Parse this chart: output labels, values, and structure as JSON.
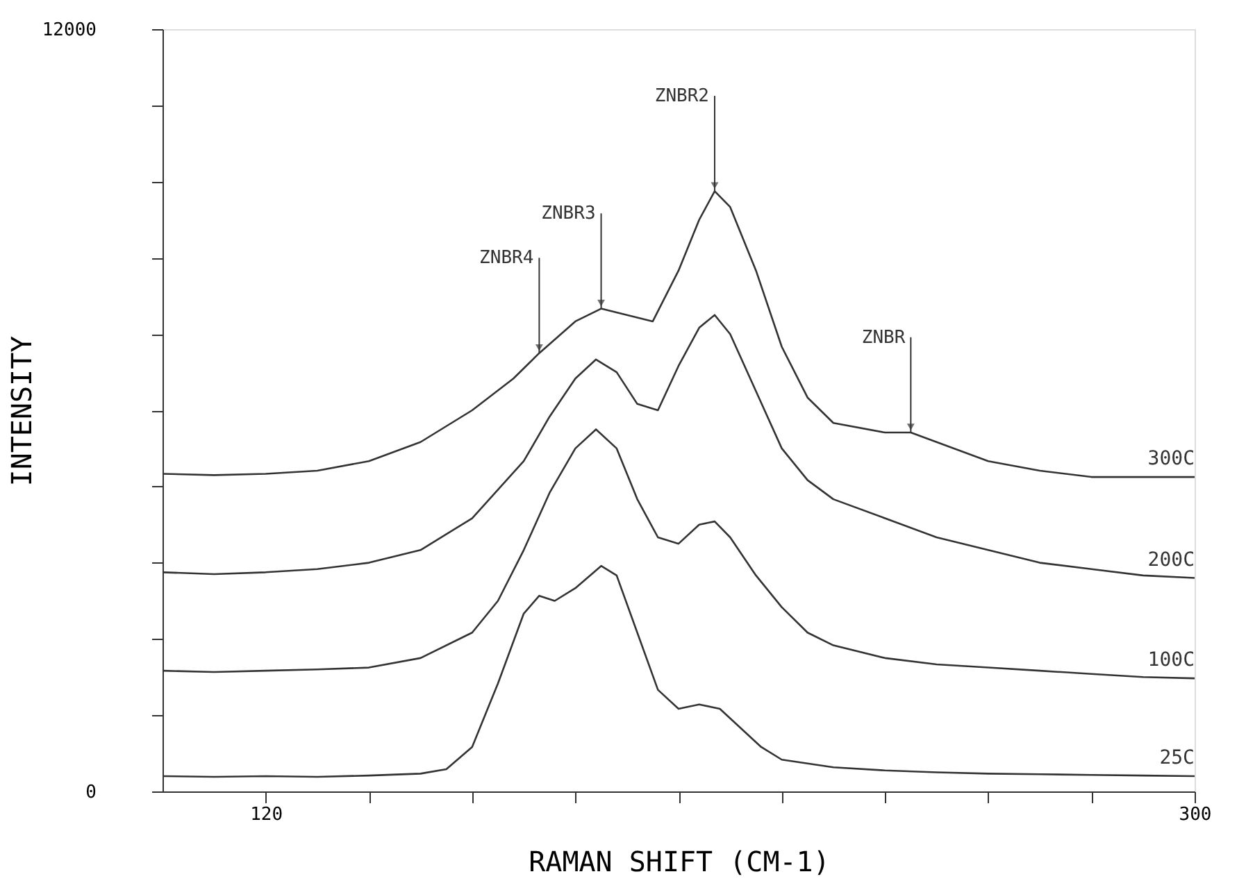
{
  "chart_data": {
    "type": "line",
    "xlabel": "RAMAN SHIFT (CM-1)",
    "ylabel": "INTENSITY",
    "xlim": [
      100,
      300
    ],
    "ylim": [
      0,
      12000
    ],
    "xticks": [
      {
        "value": 120,
        "label": "120"
      },
      {
        "value": 140,
        "label": null
      },
      {
        "value": 160,
        "label": null
      },
      {
        "value": 180,
        "label": null
      },
      {
        "value": 200,
        "label": null
      },
      {
        "value": 220,
        "label": null
      },
      {
        "value": 240,
        "label": null
      },
      {
        "value": 260,
        "label": null
      },
      {
        "value": 280,
        "label": null
      },
      {
        "value": 300,
        "label": "300"
      }
    ],
    "yticks": [
      {
        "value": 0,
        "label": "0"
      },
      {
        "value": 1200,
        "label": null
      },
      {
        "value": 2400,
        "label": null
      },
      {
        "value": 3600,
        "label": null
      },
      {
        "value": 4800,
        "label": null
      },
      {
        "value": 6000,
        "label": null
      },
      {
        "value": 7200,
        "label": null
      },
      {
        "value": 8400,
        "label": null
      },
      {
        "value": 9600,
        "label": null
      },
      {
        "value": 10800,
        "label": null
      },
      {
        "value": 12000,
        "label": "12000"
      }
    ],
    "grid": false,
    "series": [
      {
        "name": "300C",
        "color": "#333333",
        "x": [
          100,
          110,
          120,
          130,
          140,
          150,
          160,
          168,
          173,
          180,
          185,
          190,
          195,
          200,
          204,
          207,
          210,
          215,
          220,
          225,
          230,
          240,
          245,
          250,
          260,
          270,
          280,
          290,
          300
        ],
        "values": [
          5000,
          4980,
          5000,
          5050,
          5200,
          5500,
          6000,
          6500,
          6900,
          7400,
          7600,
          7500,
          7400,
          8200,
          9000,
          9450,
          9200,
          8200,
          7000,
          6200,
          5800,
          5650,
          5650,
          5500,
          5200,
          5050,
          4950,
          4950,
          4950
        ]
      },
      {
        "name": "200C",
        "color": "#333333",
        "x": [
          100,
          110,
          120,
          130,
          140,
          150,
          160,
          170,
          175,
          180,
          184,
          188,
          192,
          196,
          200,
          204,
          207,
          210,
          215,
          220,
          225,
          230,
          240,
          250,
          260,
          270,
          280,
          290,
          300
        ],
        "values": [
          3450,
          3420,
          3450,
          3500,
          3600,
          3800,
          4300,
          5200,
          5900,
          6500,
          6800,
          6600,
          6100,
          6000,
          6700,
          7300,
          7500,
          7200,
          6300,
          5400,
          4900,
          4600,
          4300,
          4000,
          3800,
          3600,
          3500,
          3400,
          3360
        ]
      },
      {
        "name": "100C",
        "color": "#333333",
        "x": [
          100,
          110,
          120,
          130,
          140,
          150,
          160,
          165,
          170,
          175,
          180,
          184,
          188,
          192,
          196,
          200,
          204,
          207,
          210,
          215,
          220,
          225,
          230,
          240,
          250,
          260,
          270,
          280,
          290,
          300
        ],
        "values": [
          1900,
          1880,
          1900,
          1920,
          1950,
          2100,
          2500,
          3000,
          3800,
          4700,
          5400,
          5700,
          5400,
          4600,
          4000,
          3900,
          4200,
          4250,
          4000,
          3400,
          2900,
          2500,
          2300,
          2100,
          2000,
          1950,
          1900,
          1850,
          1800,
          1780
        ]
      },
      {
        "name": "25C",
        "color": "#333333",
        "x": [
          100,
          110,
          120,
          130,
          140,
          150,
          155,
          160,
          165,
          170,
          173,
          176,
          180,
          185,
          188,
          192,
          196,
          200,
          204,
          208,
          212,
          216,
          220,
          230,
          240,
          250,
          260,
          270,
          280,
          290,
          300
        ],
        "values": [
          240,
          230,
          240,
          230,
          250,
          280,
          350,
          700,
          1700,
          2800,
          3080,
          3000,
          3200,
          3550,
          3400,
          2500,
          1600,
          1300,
          1370,
          1300,
          1000,
          700,
          500,
          380,
          330,
          300,
          280,
          270,
          260,
          250,
          240
        ]
      }
    ],
    "annotations": [
      {
        "text": "ZNBR4",
        "x": 173,
        "y": 6900
      },
      {
        "text": "ZNBR3",
        "x": 185,
        "y": 7600
      },
      {
        "text": "ZNBR2",
        "x": 207,
        "y": 9450
      },
      {
        "text": "ZNBR",
        "x": 245,
        "y": 5650
      }
    ]
  }
}
